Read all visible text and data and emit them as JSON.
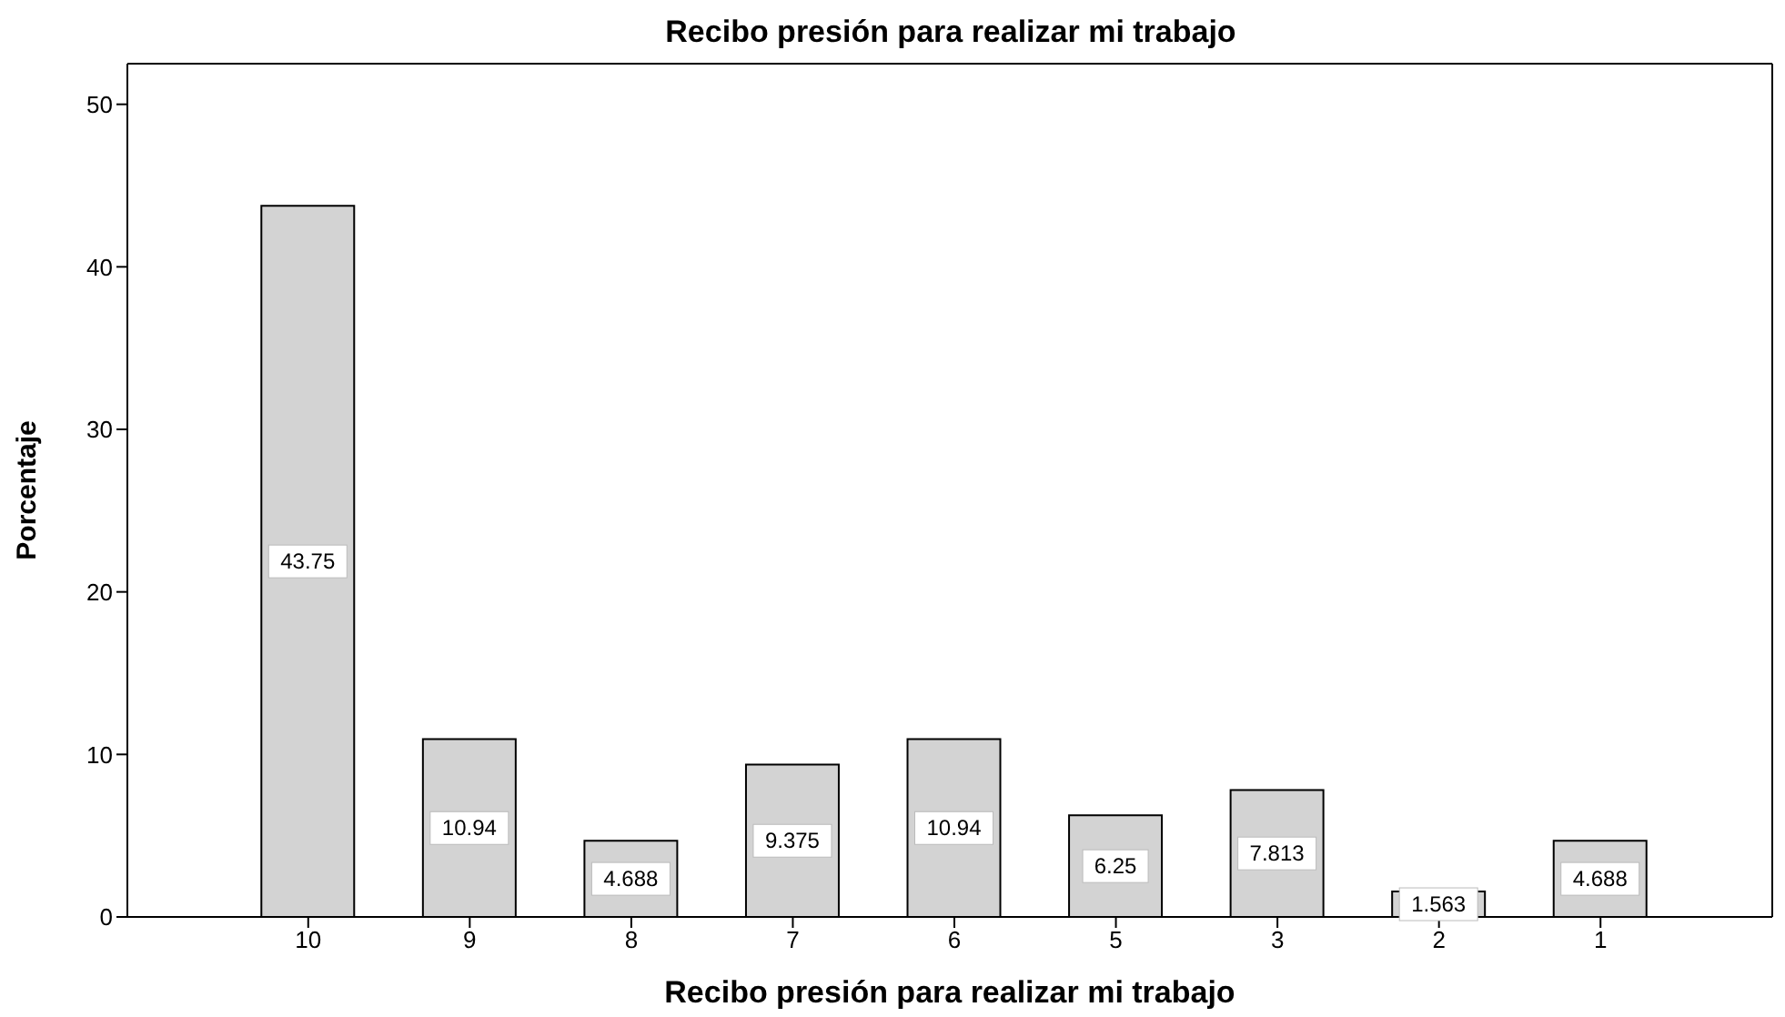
{
  "chart_data": {
    "type": "bar",
    "title": "Recibo presión para realizar mi trabajo",
    "xlabel": "Recibo presión para realizar mi trabajo",
    "ylabel": "Porcentaje",
    "categories": [
      "10",
      "9",
      "8",
      "7",
      "6",
      "5",
      "3",
      "2",
      "1"
    ],
    "values": [
      43.75,
      10.94,
      4.688,
      9.375,
      10.94,
      6.25,
      7.813,
      1.563,
      4.688
    ],
    "color": "#d3d3d3",
    "ylim": [
      0,
      52.5
    ],
    "yticks": [
      0,
      10,
      20,
      30,
      40,
      50
    ],
    "grid": false,
    "data_labels": true
  }
}
